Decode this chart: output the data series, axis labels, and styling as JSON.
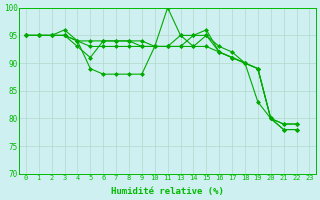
{
  "xlabel": "Humidité relative (%)",
  "ylim": [
    70,
    100
  ],
  "yticks": [
    70,
    75,
    80,
    85,
    90,
    95,
    100
  ],
  "xtick_labels": [
    "0",
    "1",
    "2",
    "3",
    "4",
    "5",
    "6",
    "7",
    "8",
    "9",
    "10",
    "11",
    "13",
    "14",
    "15",
    "16",
    "17",
    "18",
    "19",
    "20",
    "21",
    "22",
    "23"
  ],
  "background_color": "#cff0f0",
  "grid_color": "#b0d8cc",
  "line_color": "#00aa00",
  "markersize": 2.0,
  "linewidth": 0.8,
  "series": [
    [
      95,
      95,
      95,
      96,
      94,
      89,
      88,
      88,
      88,
      88,
      93,
      100,
      95,
      95,
      96,
      92,
      91,
      90,
      89,
      80,
      78,
      78,
      null
    ],
    [
      95,
      95,
      95,
      95,
      93,
      91,
      94,
      94,
      94,
      93,
      93,
      93,
      93,
      95,
      95,
      92,
      91,
      90,
      83,
      80,
      78,
      78,
      null
    ],
    [
      95,
      95,
      95,
      95,
      94,
      93,
      93,
      93,
      93,
      93,
      93,
      93,
      95,
      93,
      95,
      93,
      92,
      90,
      89,
      80,
      79,
      79,
      null
    ],
    [
      95,
      95,
      95,
      95,
      94,
      94,
      94,
      94,
      94,
      94,
      93,
      93,
      93,
      93,
      93,
      92,
      91,
      90,
      89,
      80,
      79,
      79,
      null
    ]
  ]
}
